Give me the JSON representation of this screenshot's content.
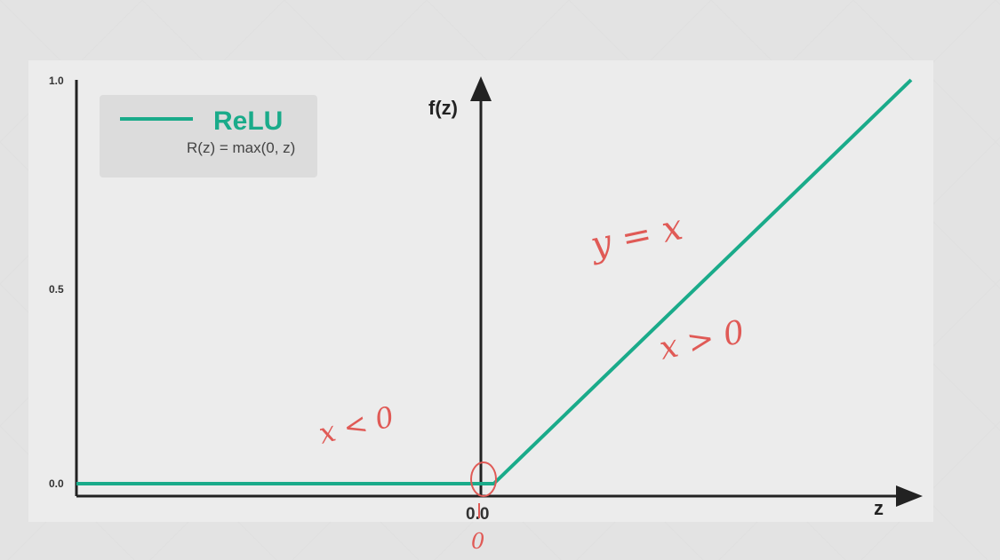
{
  "chart_data": {
    "type": "line",
    "xlabel": "z",
    "ylabel": "f(z)",
    "ylim": [
      0.0,
      1.0
    ],
    "xlim": [
      -1.0,
      1.0
    ],
    "y_ticks": [
      "0.0",
      "0.5",
      "1.0"
    ],
    "x_ticks": [
      "0.0"
    ],
    "grid": false,
    "legend_position": "top-left",
    "series": [
      {
        "name": "ReLU",
        "formula": "R(z) = max(0, z)",
        "color": "#1aab8a",
        "x": [
          -1.0,
          0.0,
          1.0
        ],
        "y": [
          0.0,
          0.0,
          1.0
        ]
      }
    ],
    "annotations": {
      "color": "#e05a56",
      "slope_note": "y = x",
      "right_region": "x > 0",
      "left_region": "x < 0",
      "origin_mark": "0"
    }
  }
}
